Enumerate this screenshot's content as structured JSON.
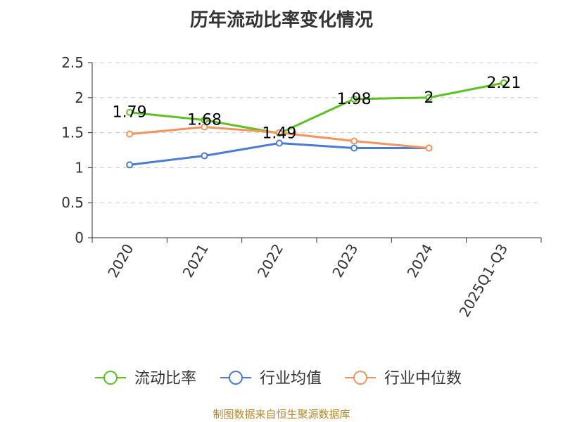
{
  "chart_data": {
    "type": "line",
    "title": "历年流动比率变化情况",
    "categories": [
      "2020",
      "2021",
      "2022",
      "2023",
      "2024",
      "2025Q1-Q3"
    ],
    "ylim": [
      0,
      2.5
    ],
    "yticks": [
      "0",
      "0.5",
      "1",
      "1.5",
      "2",
      "2.5"
    ],
    "grid": true,
    "legend_position": "bottom",
    "series": [
      {
        "name": "流动比率",
        "color": "#5cc122",
        "values": [
          1.79,
          1.68,
          1.49,
          1.98,
          2.0,
          2.21
        ],
        "labels": [
          "1.79",
          "1.68",
          "1.49",
          "1.98",
          "2",
          "2.21"
        ]
      },
      {
        "name": "行业均值",
        "color": "#4a7bd5",
        "values": [
          1.04,
          1.17,
          1.35,
          1.28,
          1.28,
          null
        ]
      },
      {
        "name": "行业中位数",
        "color": "#f5935d",
        "values": [
          1.48,
          1.58,
          1.5,
          1.38,
          1.28,
          null
        ]
      }
    ]
  },
  "source": "制图数据来自恒生聚源数据库"
}
